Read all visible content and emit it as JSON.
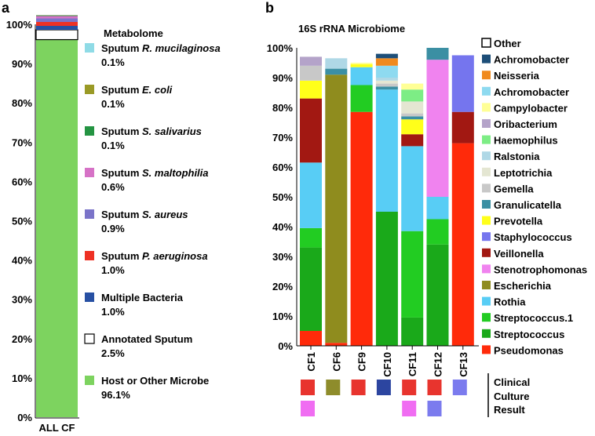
{
  "panels": {
    "a": {
      "letter": "a",
      "title": "Metabolome"
    },
    "b": {
      "letter": "b",
      "title": "16S rRNA Microbiome"
    }
  },
  "clinical_label": [
    "Clinical",
    "Culture",
    "Result"
  ],
  "chart_data": [
    {
      "type": "bar",
      "stacked": true,
      "title": "Metabolome",
      "categories": [
        "ALL CF"
      ],
      "yticks": [
        "0%",
        "10%",
        "20%",
        "30%",
        "40%",
        "50%",
        "60%",
        "70%",
        "80%",
        "90%",
        "100%"
      ],
      "ylim": [
        0,
        100
      ],
      "series": [
        {
          "name_prefix": "Host or Other Microbe",
          "name_italic": "",
          "pct": "96.1%",
          "values": [
            96.1
          ],
          "color": "#7dd35f"
        },
        {
          "name_prefix": "Annotated Sputum",
          "name_italic": "",
          "pct": "2.5%",
          "values": [
            2.5
          ],
          "color": "#ffffff"
        },
        {
          "name_prefix": "Multiple Bacteria",
          "name_italic": "",
          "pct": "1.0%",
          "values": [
            1.0
          ],
          "color": "#2750a3"
        },
        {
          "name_prefix": "Sputum ",
          "name_italic": "P. aeruginosa",
          "pct": "1.0%",
          "values": [
            1.0
          ],
          "color": "#ee3124"
        },
        {
          "name_prefix": "Sputum ",
          "name_italic": "S. aureus",
          "pct": "0.9%",
          "values": [
            0.9
          ],
          "color": "#7b74c9"
        },
        {
          "name_prefix": "Sputum ",
          "name_italic": "S. maltophilia",
          "pct": "0.6%",
          "values": [
            0.6
          ],
          "color": "#d672c6"
        },
        {
          "name_prefix": "Sputum ",
          "name_italic": "S. salivarius",
          "pct": "0.1%",
          "values": [
            0.1
          ],
          "color": "#249442"
        },
        {
          "name_prefix": "Sputum ",
          "name_italic": "E. coli",
          "pct": "0.1%",
          "values": [
            0.1
          ],
          "color": "#9a9a26"
        },
        {
          "name_prefix": "Sputum ",
          "name_italic": "R. mucilaginosa",
          "pct": "0.1%",
          "values": [
            0.1
          ],
          "color": "#8fdbe6"
        }
      ]
    },
    {
      "type": "bar",
      "stacked": true,
      "title": "16S rRNA Microbiome",
      "categories": [
        "CF1",
        "CF6",
        "CF9",
        "CF10",
        "CF11",
        "CF12",
        "CF13"
      ],
      "yticks": [
        "0%",
        "10%",
        "20%",
        "30%",
        "40%",
        "50%",
        "60%",
        "70%",
        "80%",
        "90%",
        "100%"
      ],
      "ylim": [
        0,
        100
      ],
      "series": [
        {
          "name": "Pseudomonas",
          "color": "#ff2a0a",
          "values": [
            5,
            1,
            78.5,
            0,
            0,
            0,
            68
          ]
        },
        {
          "name": "Streptococcus",
          "color": "#1aa91a",
          "values": [
            28,
            0,
            0,
            45,
            9.5,
            34,
            0
          ]
        },
        {
          "name": "Streptococcus.1",
          "color": "#22cc22",
          "values": [
            6.5,
            0,
            9,
            0,
            29,
            8.5,
            0
          ]
        },
        {
          "name": "Rothia",
          "color": "#58cdf5",
          "values": [
            22,
            0,
            6,
            41,
            28.5,
            7.5,
            0
          ]
        },
        {
          "name": "Escherichia",
          "color": "#8f8c1e",
          "values": [
            0,
            90,
            0,
            0,
            0,
            0,
            0
          ]
        },
        {
          "name": "Stenotrophomonas",
          "color": "#f083ef",
          "values": [
            0,
            0,
            0,
            0,
            0,
            46,
            0
          ]
        },
        {
          "name": "Veillonella",
          "color": "#a21812",
          "values": [
            21.5,
            0,
            0,
            0,
            4,
            0,
            10.5
          ]
        },
        {
          "name": "Staphylococcus",
          "color": "#7575ee",
          "values": [
            0,
            0,
            0,
            0,
            0,
            0,
            19
          ]
        },
        {
          "name": "Prevotella",
          "color": "#ffff1a",
          "values": [
            6,
            0,
            1,
            0,
            5,
            0,
            0
          ]
        },
        {
          "name": "Granulicatella",
          "color": "#3b8fa3",
          "values": [
            0,
            2,
            0,
            1,
            1,
            4,
            0
          ]
        },
        {
          "name": "Gemella",
          "color": "#c8c8c8",
          "values": [
            5,
            0,
            0,
            1,
            1,
            0,
            0
          ]
        },
        {
          "name": "Leptotrichia",
          "color": "#e4e6d2",
          "values": [
            0,
            0,
            0,
            1,
            4,
            0,
            0
          ]
        },
        {
          "name": "Ralstonia",
          "color": "#afd8e6",
          "values": [
            0,
            3.5,
            0,
            1,
            0,
            0,
            0
          ]
        },
        {
          "name": "Haemophilus",
          "color": "#7ded85",
          "values": [
            0,
            0,
            0,
            0,
            4,
            0,
            0
          ]
        },
        {
          "name": "Oribacterium",
          "color": "#b4a3c9",
          "values": [
            3,
            0,
            0,
            0,
            0,
            0,
            0
          ]
        },
        {
          "name": "Campylobacter",
          "color": "#ffff96",
          "values": [
            0,
            0,
            0.5,
            0,
            2,
            0,
            0
          ]
        },
        {
          "name": "Achromobacter",
          "color": "#8edaf0",
          "values": [
            0,
            0,
            0,
            4,
            0,
            0,
            0
          ]
        },
        {
          "name": "Neisseria",
          "color": "#f08a1e",
          "values": [
            0,
            0,
            0,
            2.5,
            0,
            0,
            0
          ]
        },
        {
          "name": "Achromobacter",
          "color": "#1d4e78",
          "values": [
            0,
            0,
            0,
            1.5,
            0,
            0,
            0
          ]
        },
        {
          "name": "Other",
          "color": "#ffffff",
          "values": [
            0,
            0,
            0,
            0,
            0,
            0,
            0
          ]
        }
      ],
      "clinical_culture_result": [
        [
          "#e8342e",
          "#f06df2"
        ],
        [
          "#8e8c2b"
        ],
        [
          "#e8342e"
        ],
        [
          "#2c45a0"
        ],
        [
          "#e8342e",
          "#f06df2"
        ],
        [
          "#e8342e",
          "#7b7bee"
        ],
        [
          "#7b7bee"
        ]
      ]
    }
  ]
}
